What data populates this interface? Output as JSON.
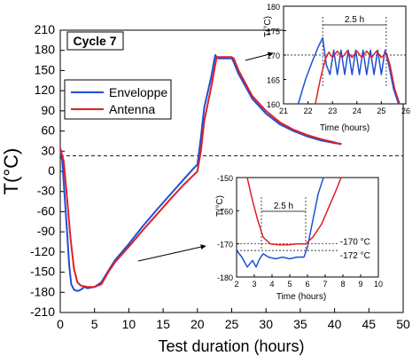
{
  "chart_data": [
    {
      "type": "line",
      "title": "",
      "annotation": "Cycle 7",
      "xlabel": "Test duration (hours)",
      "ylabel": "T(°C)",
      "xlim": [
        0,
        50
      ],
      "ylim": [
        -210,
        210
      ],
      "xticks": [
        "0",
        "5",
        "10",
        "15",
        "20",
        "25",
        "30",
        "35",
        "40",
        "45",
        "50"
      ],
      "yticks": [
        "210",
        "180",
        "150",
        "120",
        "90",
        "60",
        "30",
        "0",
        "-30",
        "-60",
        "-90",
        "-120",
        "-150",
        "-180",
        "-210"
      ],
      "reference_line_y": 23,
      "grid": false,
      "legend_position": "upper-left",
      "colors": {
        "Enveloppe": "#1f4fd6",
        "Antenna": "#e01f26"
      },
      "series": [
        {
          "name": "Enveloppe",
          "points": [
            [
              0.0,
              32
            ],
            [
              0.3,
              15
            ],
            [
              0.6,
              -30
            ],
            [
              1.0,
              -90
            ],
            [
              1.3,
              -140
            ],
            [
              1.6,
              -168
            ],
            [
              2.0,
              -176
            ],
            [
              2.5,
              -178
            ],
            [
              3.0,
              -176
            ],
            [
              3.5,
              -172
            ],
            [
              4.0,
              -174
            ],
            [
              5.0,
              -172
            ],
            [
              6.0,
              -165
            ],
            [
              7.0,
              -148
            ],
            [
              8.0,
              -132
            ],
            [
              10.0,
              -108
            ],
            [
              12.0,
              -82
            ],
            [
              14.0,
              -58
            ],
            [
              16.0,
              -35
            ],
            [
              18.0,
              -12
            ],
            [
              19.5,
              5
            ],
            [
              20.0,
              10
            ],
            [
              20.5,
              50
            ],
            [
              21.0,
              95
            ],
            [
              22.0,
              140
            ],
            [
              22.6,
              173
            ],
            [
              23.0,
              168
            ],
            [
              24.0,
              168
            ],
            [
              25.0,
              168
            ],
            [
              25.2,
              165
            ],
            [
              26.0,
              145
            ],
            [
              28.0,
              108
            ],
            [
              30.0,
              86
            ],
            [
              32.0,
              70
            ],
            [
              34.0,
              60
            ],
            [
              36.0,
              52
            ],
            [
              38.0,
              46
            ],
            [
              40.0,
              42
            ],
            [
              41.0,
              41
            ]
          ]
        },
        {
          "name": "Antenna",
          "points": [
            [
              0.0,
              35
            ],
            [
              0.5,
              15
            ],
            [
              1.0,
              -40
            ],
            [
              1.5,
              -100
            ],
            [
              2.0,
              -145
            ],
            [
              2.5,
              -165
            ],
            [
              3.0,
              -170
            ],
            [
              4.0,
              -172
            ],
            [
              5.0,
              -172
            ],
            [
              6.0,
              -168
            ],
            [
              7.0,
              -150
            ],
            [
              8.0,
              -135
            ],
            [
              10.0,
              -112
            ],
            [
              12.0,
              -88
            ],
            [
              14.0,
              -65
            ],
            [
              16.0,
              -42
            ],
            [
              18.0,
              -20
            ],
            [
              19.5,
              -5
            ],
            [
              20.0,
              0
            ],
            [
              20.5,
              30
            ],
            [
              21.0,
              75
            ],
            [
              22.0,
              125
            ],
            [
              22.8,
              170
            ],
            [
              25.0,
              170
            ],
            [
              25.3,
              168
            ],
            [
              26.0,
              150
            ],
            [
              28.0,
              112
            ],
            [
              30.0,
              90
            ],
            [
              32.0,
              73
            ],
            [
              34.0,
              62
            ],
            [
              36.0,
              54
            ],
            [
              38.0,
              48
            ],
            [
              40.0,
              43
            ],
            [
              41.0,
              40
            ]
          ]
        }
      ]
    },
    {
      "type": "line",
      "title": "",
      "xlabel": "Time (hours)",
      "ylabel": "T(°C)",
      "xlim": [
        21,
        26
      ],
      "ylim": [
        160,
        180
      ],
      "xticks": [
        "21",
        "22",
        "23",
        "24",
        "25",
        "26"
      ],
      "yticks": [
        "180",
        "175",
        "170",
        "165",
        "160"
      ],
      "reference_line_y": 170,
      "annotation": "2.5 h",
      "span_x": [
        22.6,
        25.2
      ],
      "series": [
        {
          "name": "Enveloppe",
          "points": [
            [
              21.6,
              160
            ],
            [
              21.9,
              165
            ],
            [
              22.2,
              169
            ],
            [
              22.45,
              172
            ],
            [
              22.6,
              173.5
            ],
            [
              22.75,
              168
            ],
            [
              22.9,
              166
            ],
            [
              23.05,
              171
            ],
            [
              23.2,
              166
            ],
            [
              23.35,
              171
            ],
            [
              23.5,
              166
            ],
            [
              23.65,
              171
            ],
            [
              23.8,
              166
            ],
            [
              23.95,
              171
            ],
            [
              24.1,
              166
            ],
            [
              24.25,
              171
            ],
            [
              24.4,
              166
            ],
            [
              24.55,
              171
            ],
            [
              24.7,
              166
            ],
            [
              24.85,
              171
            ],
            [
              25.0,
              166
            ],
            [
              25.15,
              171
            ],
            [
              25.3,
              168
            ],
            [
              25.5,
              163
            ],
            [
              25.7,
              160
            ]
          ]
        },
        {
          "name": "Antenna",
          "points": [
            [
              22.3,
              160
            ],
            [
              22.5,
              165
            ],
            [
              22.7,
              169
            ],
            [
              22.85,
              170.6
            ],
            [
              23.0,
              169.5
            ],
            [
              23.2,
              170.8
            ],
            [
              23.4,
              169.5
            ],
            [
              23.6,
              170.8
            ],
            [
              23.8,
              169.5
            ],
            [
              24.0,
              170.8
            ],
            [
              24.2,
              169.5
            ],
            [
              24.4,
              170.8
            ],
            [
              24.6,
              169.5
            ],
            [
              24.8,
              170.8
            ],
            [
              25.0,
              169.5
            ],
            [
              25.2,
              170.5
            ],
            [
              25.35,
              168
            ],
            [
              25.55,
              163
            ],
            [
              25.75,
              160
            ]
          ]
        }
      ]
    },
    {
      "type": "line",
      "title": "",
      "xlabel": "Time (hours)",
      "ylabel": "T(°C)",
      "xlim": [
        2,
        10
      ],
      "ylim": [
        -180,
        -150
      ],
      "xticks": [
        "2",
        "3",
        "4",
        "5",
        "6",
        "7",
        "8",
        "9",
        "10"
      ],
      "yticks": [
        "-150",
        "-160",
        "-170",
        "-180"
      ],
      "reference_lines_y": [
        -170,
        -172
      ],
      "reference_labels": [
        "-170 °C",
        "-172 °C"
      ],
      "annotation": "2.5 h",
      "span_x": [
        3.4,
        5.9
      ],
      "series": [
        {
          "name": "Enveloppe",
          "points": [
            [
              2.0,
              -172
            ],
            [
              2.3,
              -174
            ],
            [
              2.6,
              -177
            ],
            [
              2.9,
              -175
            ],
            [
              3.1,
              -177
            ],
            [
              3.3,
              -174.5
            ],
            [
              3.5,
              -173
            ],
            [
              3.8,
              -174
            ],
            [
              4.2,
              -174.5
            ],
            [
              4.6,
              -174
            ],
            [
              5.0,
              -174.5
            ],
            [
              5.4,
              -174
            ],
            [
              5.8,
              -174
            ],
            [
              6.0,
              -171
            ],
            [
              6.3,
              -163
            ],
            [
              6.6,
              -155
            ],
            [
              6.9,
              -150
            ]
          ]
        },
        {
          "name": "Antenna",
          "points": [
            [
              2.6,
              -150
            ],
            [
              2.9,
              -157
            ],
            [
              3.2,
              -163
            ],
            [
              3.5,
              -168
            ],
            [
              3.9,
              -170
            ],
            [
              4.4,
              -170.3
            ],
            [
              4.9,
              -170.3
            ],
            [
              5.4,
              -170
            ],
            [
              5.9,
              -170
            ],
            [
              6.3,
              -168
            ],
            [
              6.8,
              -164
            ],
            [
              7.2,
              -159
            ],
            [
              7.6,
              -154
            ],
            [
              7.9,
              -150
            ]
          ]
        }
      ]
    }
  ]
}
